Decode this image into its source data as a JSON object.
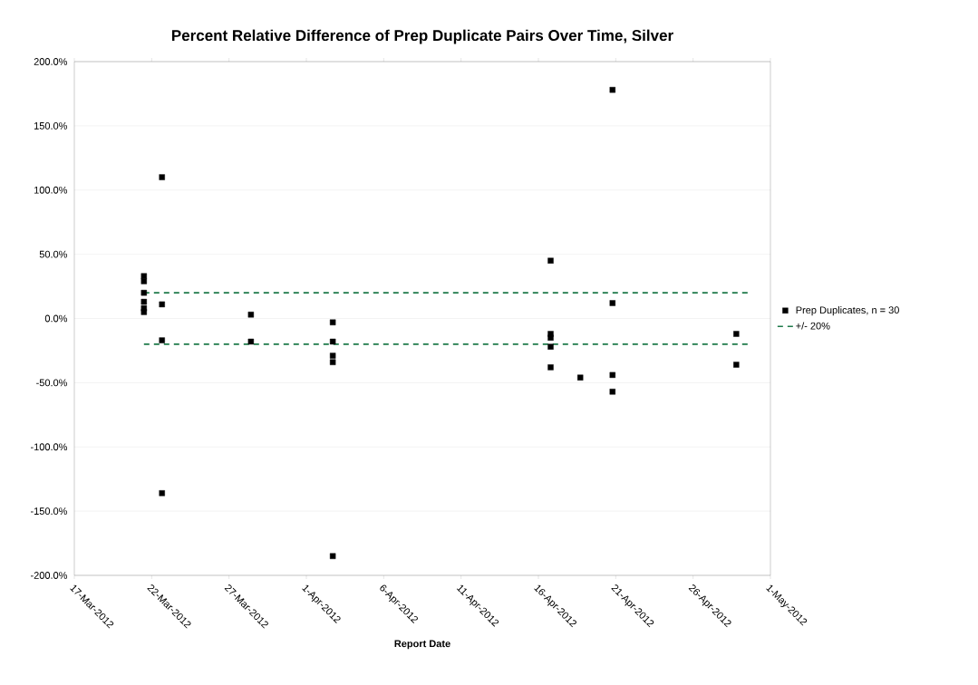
{
  "chart_data": {
    "type": "scatter",
    "title": "Percent Relative Difference of Prep Duplicate Pairs Over Time, Silver",
    "xlabel": "Report Date",
    "xlim": [
      "2012-03-17",
      "2012-05-01"
    ],
    "xticks": [
      {
        "value": "2012-03-17",
        "label": "17-Mar-2012"
      },
      {
        "value": "2012-03-22",
        "label": "22-Mar-2012"
      },
      {
        "value": "2012-03-27",
        "label": "27-Mar-2012"
      },
      {
        "value": "2012-04-01",
        "label": "1-Apr-2012"
      },
      {
        "value": "2012-04-06",
        "label": "6-Apr-2012"
      },
      {
        "value": "2012-04-11",
        "label": "11-Apr-2012"
      },
      {
        "value": "2012-04-16",
        "label": "16-Apr-2012"
      },
      {
        "value": "2012-04-21",
        "label": "21-Apr-2012"
      },
      {
        "value": "2012-04-26",
        "label": "26-Apr-2012"
      },
      {
        "value": "2012-05-01",
        "label": "1-May-2012"
      }
    ],
    "ylim": [
      -200,
      200
    ],
    "yticks": [
      {
        "value": -200,
        "label": "-200.0%"
      },
      {
        "value": -150,
        "label": "-150.0%"
      },
      {
        "value": -100,
        "label": "-100.0%"
      },
      {
        "value": -50,
        "label": "-50.0%"
      },
      {
        "value": 0,
        "label": "0.0%"
      },
      {
        "value": 50,
        "label": "50.0%"
      },
      {
        "value": 100,
        "label": "100.0%"
      },
      {
        "value": 150,
        "label": "150.0%"
      },
      {
        "value": 200,
        "label": "200.0%"
      }
    ],
    "grid": "y",
    "legend": "right",
    "series": [
      {
        "name": "Prep Duplicates, n = 30",
        "marker": "square",
        "color": "#000000",
        "x": [
          "2012-03-21T12:00",
          "2012-03-21T12:00",
          "2012-03-21T12:00",
          "2012-03-21T12:00",
          "2012-03-21T12:00",
          "2012-03-21T12:00",
          "2012-03-22T16:00",
          "2012-03-22T16:00",
          "2012-03-22T16:00",
          "2012-03-22T16:00",
          "2012-03-28T10:00",
          "2012-03-28T10:00",
          "2012-04-02T17:00",
          "2012-04-02T17:00",
          "2012-04-02T17:00",
          "2012-04-02T17:00",
          "2012-04-02T17:00",
          "2012-04-16T19:00",
          "2012-04-16T19:00",
          "2012-04-16T19:00",
          "2012-04-16T19:00",
          "2012-04-16T19:00",
          "2012-04-18T17:00",
          "2012-04-20T19:00",
          "2012-04-20T19:00",
          "2012-04-20T19:00",
          "2012-04-20T19:00",
          "2012-04-28T19:00",
          "2012-04-28T19:00"
        ],
        "values": [
          33,
          29,
          20,
          13,
          8,
          5,
          110,
          11,
          -17,
          -136,
          3,
          -18,
          -3,
          -18,
          -29,
          -34,
          -185,
          45,
          -12,
          -15,
          -22,
          -38,
          -46,
          178,
          12,
          -44,
          -57,
          -12,
          -36
        ]
      },
      {
        "name": "+/- 20%",
        "type": "line",
        "line_style": "dashed",
        "marker": "none",
        "color": "#1e7a4a",
        "x": [
          "2012-03-21T12:00",
          "2012-04-29T14:00"
        ],
        "values": [
          20,
          20
        ]
      },
      {
        "type": "line",
        "line_style": "dashed",
        "marker": "none",
        "color": "#1e7a4a",
        "x": [
          "2012-03-21T12:00",
          "2012-04-29T14:00"
        ],
        "values": [
          -20,
          -20
        ]
      }
    ]
  }
}
